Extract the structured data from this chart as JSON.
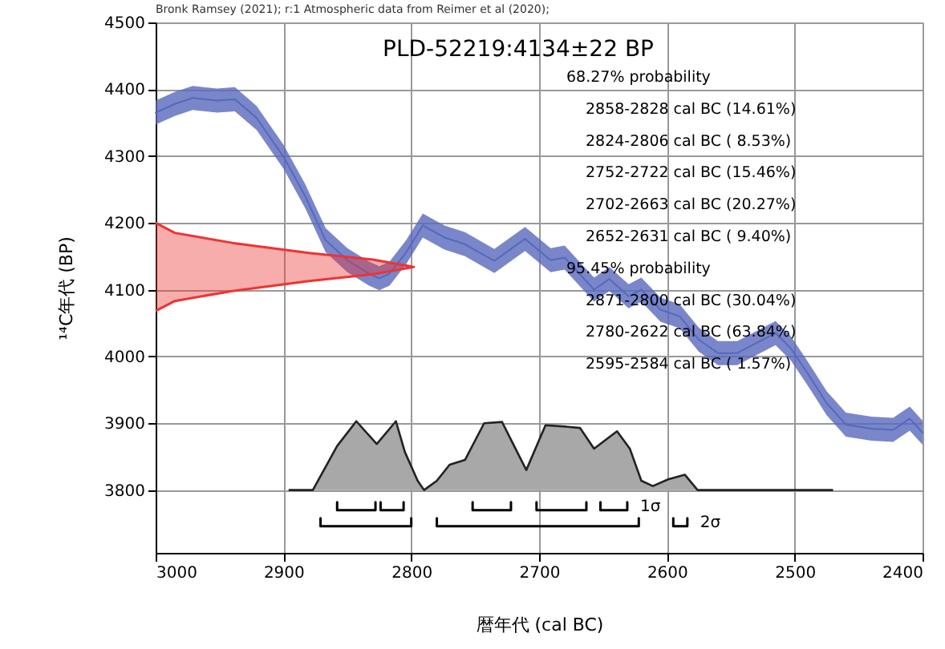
{
  "chart_data": {
    "type": "line",
    "title": "PLD-52219:4134±22 BP",
    "xlabel": "暦年代 (cal BC)",
    "ylabel": "¹⁴C年代 (BP)",
    "xlim": [
      3000,
      2400
    ],
    "xticks": [
      3000,
      2900,
      2800,
      2700,
      2600,
      2500,
      2400
    ],
    "ylim": [
      3706,
      4500
    ],
    "yticks": [
      3800,
      3900,
      4000,
      4100,
      4200,
      4300,
      4400,
      4500
    ],
    "grid": true,
    "annotations": [
      "Bronk Ramsey (2021); r:1 Atmospheric data from Reimer et al (2020);",
      "68.27% probability",
      "2858-2828 cal BC (14.61%)",
      "2824-2806 cal BC ( 8.53%)",
      "2752-2722 cal BC (15.46%)",
      "2702-2663 cal BC (20.27%)",
      "2652-2631 cal BC ( 9.40%)",
      "95.45% probability",
      "2871-2800 cal BC (30.04%)",
      "2780-2622 cal BC (63.84%)",
      "2595-2584 cal BC ( 1.57%)"
    ],
    "series": [
      {
        "color": "#5868bb",
        "x": [
          3000,
          2985,
          2971,
          2952,
          2938,
          2921,
          2900,
          2883,
          2867,
          2850,
          2833,
          2825,
          2817,
          2804,
          2791,
          2774,
          2758,
          2735,
          2711,
          2691,
          2680,
          2657,
          2645,
          2630,
          2620,
          2605,
          2590,
          2575,
          2560,
          2545,
          2530,
          2515,
          2503,
          2490,
          2475,
          2460,
          2440,
          2423,
          2410,
          2400
        ],
        "values": [
          4365,
          4378,
          4387,
          4383,
          4385,
          4357,
          4299,
          4240,
          4174,
          4144,
          4124,
          4117,
          4124,
          4156,
          4196,
          4178,
          4168,
          4143,
          4176,
          4144,
          4148,
          4100,
          4116,
          4090,
          4100,
          4070,
          4060,
          4025,
          4005,
          4005,
          4020,
          4035,
          4012,
          3975,
          3930,
          3898,
          3892,
          3890,
          3907,
          3886
        ],
        "lower": [
          4347,
          4360,
          4369,
          4365,
          4367,
          4339,
          4281,
          4222,
          4156,
          4126,
          4106,
          4099,
          4106,
          4138,
          4178,
          4160,
          4150,
          4125,
          4158,
          4126,
          4130,
          4082,
          4098,
          4072,
          4082,
          4052,
          4042,
          4007,
          3987,
          3987,
          4002,
          4017,
          3994,
          3957,
          3912,
          3880,
          3874,
          3872,
          3889,
          3868
        ],
        "upper": [
          4383,
          4396,
          4405,
          4401,
          4403,
          4375,
          4317,
          4258,
          4192,
          4162,
          4142,
          4135,
          4142,
          4174,
          4214,
          4196,
          4186,
          4161,
          4194,
          4162,
          4166,
          4118,
          4134,
          4108,
          4118,
          4088,
          4078,
          4043,
          4023,
          4023,
          4038,
          4053,
          4030,
          3993,
          3948,
          3916,
          3910,
          3908,
          3925,
          3904
        ]
      },
      {
        "type": "area",
        "color": "#ee3333",
        "x": [
          3000,
          2985,
          2940,
          2880,
          2830,
          2798,
          2830,
          2880,
          2940,
          2985,
          3000
        ],
        "values": [
          4200,
          4185,
          4170,
          4155,
          4145,
          4134,
          4123,
          4113,
          4098,
          4083,
          4068
        ]
      },
      {
        "type": "area",
        "color": "#a8a8a8",
        "x": [
          2896,
          2877,
          2858,
          2843,
          2827,
          2812,
          2805,
          2795,
          2790,
          2780,
          2770,
          2758,
          2743,
          2729,
          2710,
          2695,
          2679,
          2668,
          2657,
          2639,
          2629,
          2620,
          2611,
          2599,
          2586,
          2576,
          2470
        ],
        "values": [
          3800,
          3800,
          3866,
          3903,
          3869,
          3903,
          3857,
          3814,
          3800,
          3814,
          3838,
          3845,
          3900,
          3902,
          3830,
          3897,
          3895,
          3893,
          3862,
          3888,
          3862,
          3814,
          3806,
          3816,
          3823,
          3800,
          3800
        ]
      },
      {
        "type": "line",
        "name": "1σ",
        "color": "#000000",
        "x": [
          2858,
          2858,
          2828,
          2828,
          null,
          2824,
          2824,
          2806,
          2806,
          null,
          2752,
          2752,
          2722,
          2722,
          null,
          2702,
          2702,
          2663,
          2663,
          null,
          2652,
          2652,
          2631,
          2631
        ],
        "values": [
          3782,
          3770,
          3770,
          3782,
          null,
          3782,
          3770,
          3770,
          3782,
          null,
          3782,
          3770,
          3770,
          3782,
          null,
          3782,
          3770,
          3770,
          3782,
          null,
          3782,
          3770,
          3770,
          3782
        ]
      },
      {
        "type": "line",
        "name": "2σ",
        "color": "#000000",
        "x": [
          2871,
          2871,
          2800,
          2800,
          null,
          2780,
          2780,
          2622,
          2622,
          null,
          2595,
          2595,
          2584,
          2584
        ],
        "values": [
          3758,
          3746,
          3746,
          3758,
          null,
          3758,
          3746,
          3746,
          3758,
          null,
          3758,
          3746,
          3746,
          3758
        ]
      }
    ]
  }
}
